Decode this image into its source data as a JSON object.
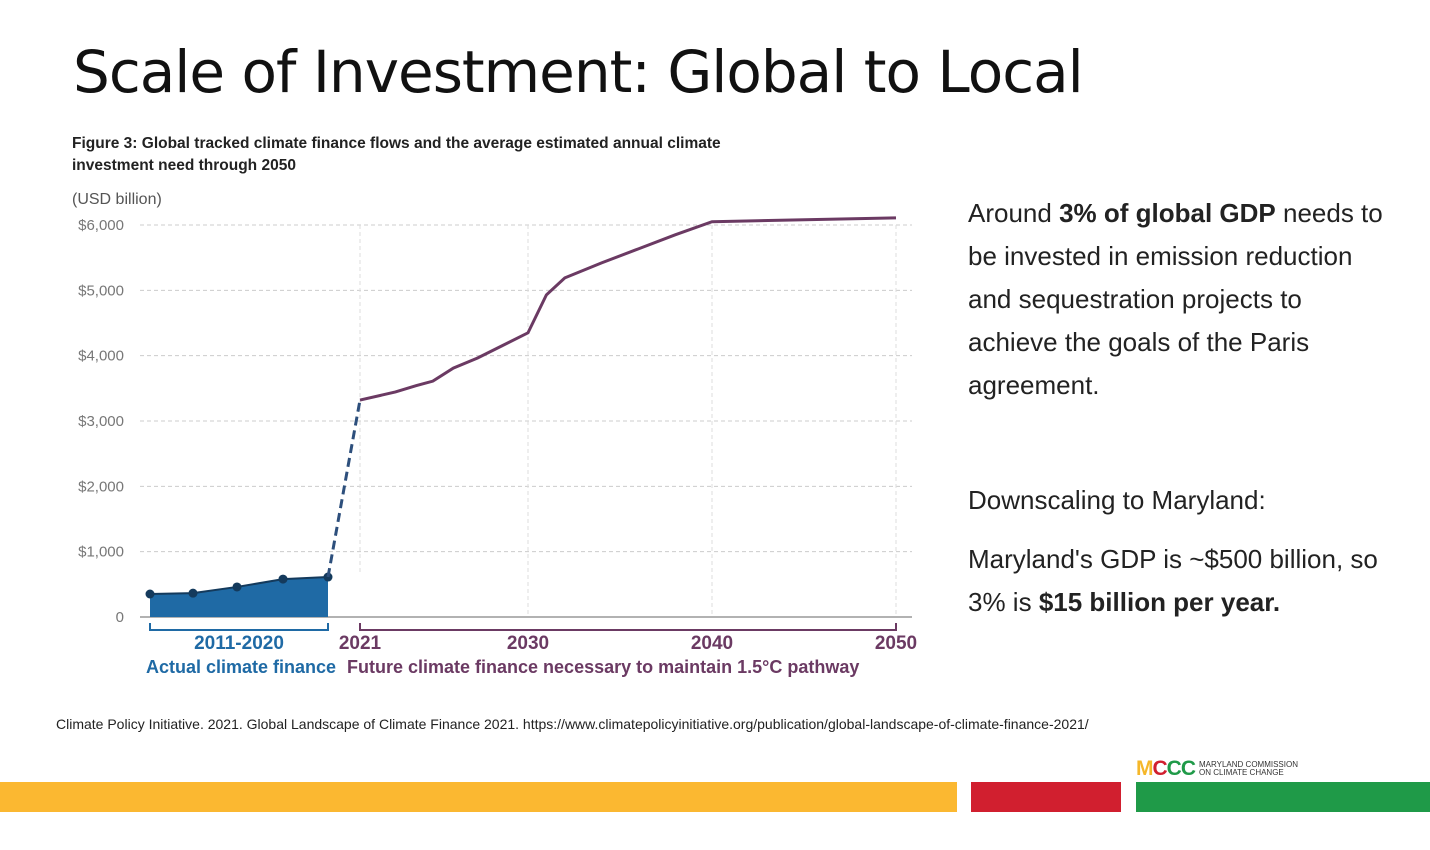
{
  "title": "Scale of Investment: Global to Local",
  "source": "Climate Policy Initiative. 2021. Global Landscape of Climate Finance 2021. https://www.climatepolicyinitiative.org/publication/global-landscape-of-climate-finance-2021/",
  "right": {
    "p1_pre": "Around ",
    "p1_bold": "3% of global GDP",
    "p1_post": " needs to be invested in emission reduction and sequestration projects to achieve the goals of the Paris agreement.",
    "p2": "Downscaling to Maryland:",
    "p3_pre": "Maryland's GDP is ~$500 billion, so 3% is ",
    "p3_bold": "$15 billion per year."
  },
  "logo": {
    "mark": "MCCC",
    "line1": "MARYLAND COMMISSION",
    "line2": "ON CLIMATE CHANGE"
  },
  "colors": {
    "actual": "#1f6aa5",
    "actual_dot": "#143a5c",
    "future": "#6b3a63",
    "bar_yellow": "#fbb831",
    "bar_red": "#d11f2f",
    "bar_green": "#1f9a48"
  },
  "chart_data": {
    "type": "line",
    "title": "Figure 3: Global tracked climate finance flows and the average estimated annual climate investment need through 2050",
    "ylabel": "(USD billion)",
    "ylim": [
      0,
      6000
    ],
    "yticks": [
      0,
      1000,
      2000,
      3000,
      4000,
      5000,
      6000
    ],
    "ytick_labels": [
      "0",
      "$1,000",
      "$2,000",
      "$3,000",
      "$4,000",
      "$5,000",
      "$6,000"
    ],
    "xticks": [
      2021,
      2030,
      2040,
      2050
    ],
    "xtick_labels": [
      "2021",
      "2030",
      "2040",
      "2050"
    ],
    "actual": {
      "name": "Actual climate finance",
      "period_label": "2011-2020",
      "values": [
        352,
        365,
        460,
        580,
        612
      ]
    },
    "future": {
      "name": "Future climate finance necessary to maintain 1.5°C pathway",
      "x": [
        2021,
        2022.9,
        2024,
        2024.9,
        2026,
        2027.3,
        2028.6,
        2030,
        2031,
        2032,
        2034,
        2036,
        2038,
        2040,
        2050
      ],
      "y": [
        3320,
        3445,
        3540,
        3610,
        3810,
        3965,
        4150,
        4350,
        4930,
        5190,
        5420,
        5635,
        5850,
        6050,
        6110
      ]
    },
    "grid": true
  }
}
